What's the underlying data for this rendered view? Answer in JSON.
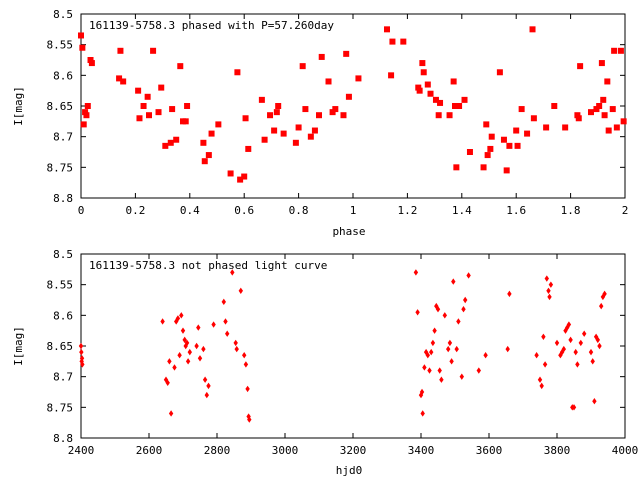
{
  "chart_data": [
    {
      "type": "scatter",
      "title": "161139-5758.3 phased with P=57.260day",
      "xlabel": "phase",
      "ylabel": "I[mag]",
      "xlim": [
        0,
        2
      ],
      "ylim": [
        8.5,
        8.8
      ],
      "y_inverted": true,
      "grid": false,
      "marker": "filled-square",
      "color": "#ff0000",
      "x_ticks": [
        "0",
        "0.2",
        "0.4",
        "0.6",
        "0.8",
        "1",
        "1.2",
        "1.4",
        "1.6",
        "1.8",
        "2"
      ],
      "y_ticks": [
        "8.5",
        "8.55",
        "8.6",
        "8.65",
        "8.7",
        "8.75",
        "8.8"
      ],
      "points": [
        [
          0.0,
          8.535
        ],
        [
          0.005,
          8.555
        ],
        [
          0.01,
          8.68
        ],
        [
          0.015,
          8.66
        ],
        [
          0.02,
          8.665
        ],
        [
          0.025,
          8.65
        ],
        [
          0.035,
          8.575
        ],
        [
          0.04,
          8.58
        ],
        [
          0.14,
          8.605
        ],
        [
          0.145,
          8.56
        ],
        [
          0.155,
          8.61
        ],
        [
          0.21,
          8.625
        ],
        [
          0.215,
          8.67
        ],
        [
          0.23,
          8.65
        ],
        [
          0.245,
          8.635
        ],
        [
          0.25,
          8.665
        ],
        [
          0.265,
          8.56
        ],
        [
          0.285,
          8.66
        ],
        [
          0.295,
          8.62
        ],
        [
          0.31,
          8.715
        ],
        [
          0.33,
          8.71
        ],
        [
          0.335,
          8.655
        ],
        [
          0.35,
          8.705
        ],
        [
          0.365,
          8.585
        ],
        [
          0.375,
          8.675
        ],
        [
          0.385,
          8.675
        ],
        [
          0.39,
          8.65
        ],
        [
          0.45,
          8.71
        ],
        [
          0.455,
          8.74
        ],
        [
          0.47,
          8.73
        ],
        [
          0.48,
          8.695
        ],
        [
          0.505,
          8.68
        ],
        [
          0.55,
          8.76
        ],
        [
          0.575,
          8.595
        ],
        [
          0.585,
          8.77
        ],
        [
          0.6,
          8.765
        ],
        [
          0.605,
          8.67
        ],
        [
          0.615,
          8.72
        ],
        [
          0.665,
          8.64
        ],
        [
          0.675,
          8.705
        ],
        [
          0.695,
          8.665
        ],
        [
          0.71,
          8.69
        ],
        [
          0.72,
          8.66
        ],
        [
          0.725,
          8.65
        ],
        [
          0.745,
          8.695
        ],
        [
          0.79,
          8.71
        ],
        [
          0.8,
          8.685
        ],
        [
          0.815,
          8.585
        ],
        [
          0.825,
          8.655
        ],
        [
          0.845,
          8.7
        ],
        [
          0.86,
          8.69
        ],
        [
          0.875,
          8.665
        ],
        [
          0.885,
          8.57
        ],
        [
          0.91,
          8.61
        ],
        [
          0.925,
          8.66
        ],
        [
          0.935,
          8.655
        ],
        [
          0.965,
          8.665
        ],
        [
          0.975,
          8.565
        ],
        [
          0.985,
          8.635
        ],
        [
          1.02,
          8.605
        ],
        [
          1.125,
          8.525
        ],
        [
          1.14,
          8.6
        ],
        [
          1.145,
          8.545
        ],
        [
          1.185,
          8.545
        ],
        [
          1.24,
          8.62
        ],
        [
          1.245,
          8.625
        ],
        [
          1.255,
          8.58
        ],
        [
          1.26,
          8.595
        ],
        [
          1.275,
          8.615
        ],
        [
          1.285,
          8.63
        ],
        [
          1.305,
          8.64
        ],
        [
          1.315,
          8.665
        ],
        [
          1.32,
          8.645
        ],
        [
          1.355,
          8.665
        ],
        [
          1.37,
          8.61
        ],
        [
          1.375,
          8.65
        ],
        [
          1.38,
          8.75
        ],
        [
          1.39,
          8.65
        ],
        [
          1.41,
          8.64
        ],
        [
          1.43,
          8.725
        ],
        [
          1.48,
          8.75
        ],
        [
          1.49,
          8.68
        ],
        [
          1.495,
          8.73
        ],
        [
          1.505,
          8.72
        ],
        [
          1.51,
          8.7
        ],
        [
          1.54,
          8.595
        ],
        [
          1.555,
          8.705
        ],
        [
          1.565,
          8.755
        ],
        [
          1.575,
          8.715
        ],
        [
          1.6,
          8.69
        ],
        [
          1.605,
          8.715
        ],
        [
          1.62,
          8.655
        ],
        [
          1.64,
          8.695
        ],
        [
          1.66,
          8.525
        ],
        [
          1.665,
          8.67
        ],
        [
          1.71,
          8.685
        ],
        [
          1.74,
          8.65
        ],
        [
          1.78,
          8.685
        ],
        [
          1.825,
          8.665
        ],
        [
          1.83,
          8.67
        ],
        [
          1.835,
          8.585
        ],
        [
          1.875,
          8.66
        ],
        [
          1.895,
          8.655
        ],
        [
          1.905,
          8.65
        ],
        [
          1.915,
          8.58
        ],
        [
          1.92,
          8.64
        ],
        [
          1.925,
          8.665
        ],
        [
          1.935,
          8.61
        ],
        [
          1.94,
          8.69
        ],
        [
          1.955,
          8.655
        ],
        [
          1.96,
          8.56
        ],
        [
          1.97,
          8.685
        ],
        [
          1.985,
          8.56
        ],
        [
          1.995,
          8.675
        ]
      ]
    },
    {
      "type": "scatter",
      "title": "161139-5758.3 not phased light curve",
      "xlabel": "hjd0",
      "ylabel": "I[mag]",
      "xlim": [
        2400,
        4000
      ],
      "ylim": [
        8.5,
        8.8
      ],
      "y_inverted": true,
      "grid": false,
      "marker": "diamond",
      "color": "#ff0000",
      "x_ticks": [
        "2400",
        "2600",
        "2800",
        "3000",
        "3200",
        "3400",
        "3600",
        "3800",
        "4000"
      ],
      "y_ticks": [
        "8.5",
        "8.55",
        "8.6",
        "8.65",
        "8.7",
        "8.75",
        "8.8"
      ],
      "points": [
        [
          2400,
          8.65
        ],
        [
          2401,
          8.66
        ],
        [
          2402,
          8.675
        ],
        [
          2403,
          8.67
        ],
        [
          2404,
          8.68
        ],
        [
          2640,
          8.61
        ],
        [
          2650,
          8.705
        ],
        [
          2655,
          8.71
        ],
        [
          2660,
          8.675
        ],
        [
          2665,
          8.76
        ],
        [
          2675,
          8.685
        ],
        [
          2680,
          8.61
        ],
        [
          2685,
          8.605
        ],
        [
          2690,
          8.665
        ],
        [
          2695,
          8.6
        ],
        [
          2700,
          8.625
        ],
        [
          2705,
          8.64
        ],
        [
          2708,
          8.65
        ],
        [
          2712,
          8.645
        ],
        [
          2715,
          8.675
        ],
        [
          2720,
          8.66
        ],
        [
          2740,
          8.65
        ],
        [
          2745,
          8.62
        ],
        [
          2750,
          8.67
        ],
        [
          2760,
          8.655
        ],
        [
          2765,
          8.705
        ],
        [
          2770,
          8.73
        ],
        [
          2775,
          8.715
        ],
        [
          2790,
          8.615
        ],
        [
          2820,
          8.578
        ],
        [
          2825,
          8.61
        ],
        [
          2830,
          8.63
        ],
        [
          2845,
          8.53
        ],
        [
          2855,
          8.645
        ],
        [
          2858,
          8.655
        ],
        [
          2870,
          8.56
        ],
        [
          2880,
          8.665
        ],
        [
          2885,
          8.68
        ],
        [
          2890,
          8.72
        ],
        [
          2893,
          8.765
        ],
        [
          2895,
          8.77
        ],
        [
          3385,
          8.53
        ],
        [
          3390,
          8.595
        ],
        [
          3400,
          8.73
        ],
        [
          3403,
          8.725
        ],
        [
          3405,
          8.76
        ],
        [
          3410,
          8.685
        ],
        [
          3415,
          8.66
        ],
        [
          3420,
          8.665
        ],
        [
          3425,
          8.69
        ],
        [
          3430,
          8.66
        ],
        [
          3435,
          8.645
        ],
        [
          3440,
          8.625
        ],
        [
          3445,
          8.585
        ],
        [
          3450,
          8.59
        ],
        [
          3455,
          8.69
        ],
        [
          3460,
          8.705
        ],
        [
          3470,
          8.6
        ],
        [
          3480,
          8.655
        ],
        [
          3485,
          8.645
        ],
        [
          3490,
          8.675
        ],
        [
          3495,
          8.545
        ],
        [
          3505,
          8.655
        ],
        [
          3510,
          8.61
        ],
        [
          3520,
          8.7
        ],
        [
          3525,
          8.59
        ],
        [
          3530,
          8.575
        ],
        [
          3540,
          8.535
        ],
        [
          3570,
          8.69
        ],
        [
          3590,
          8.665
        ],
        [
          3655,
          8.655
        ],
        [
          3660,
          8.565
        ],
        [
          3740,
          8.665
        ],
        [
          3750,
          8.705
        ],
        [
          3755,
          8.715
        ],
        [
          3760,
          8.635
        ],
        [
          3765,
          8.68
        ],
        [
          3770,
          8.54
        ],
        [
          3775,
          8.56
        ],
        [
          3778,
          8.57
        ],
        [
          3782,
          8.55
        ],
        [
          3800,
          8.645
        ],
        [
          3810,
          8.665
        ],
        [
          3815,
          8.66
        ],
        [
          3820,
          8.655
        ],
        [
          3825,
          8.625
        ],
        [
          3830,
          8.62
        ],
        [
          3835,
          8.615
        ],
        [
          3840,
          8.64
        ],
        [
          3845,
          8.75
        ],
        [
          3850,
          8.75
        ],
        [
          3855,
          8.66
        ],
        [
          3860,
          8.68
        ],
        [
          3870,
          8.645
        ],
        [
          3880,
          8.63
        ],
        [
          3900,
          8.66
        ],
        [
          3905,
          8.675
        ],
        [
          3910,
          8.74
        ],
        [
          3915,
          8.635
        ],
        [
          3920,
          8.64
        ],
        [
          3925,
          8.65
        ],
        [
          3930,
          8.585
        ],
        [
          3935,
          8.57
        ],
        [
          3940,
          8.565
        ]
      ]
    }
  ]
}
